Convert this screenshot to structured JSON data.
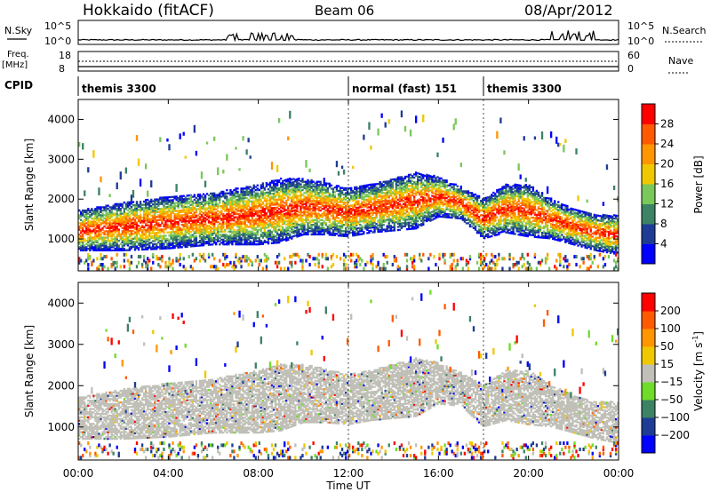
{
  "header": {
    "station": "Hokkaido (fitACF)",
    "beam": "Beam 06",
    "date": "08/Apr/2012"
  },
  "strip_labels": {
    "nsky": "N.Sky",
    "nsearch": "N.Search",
    "freq_top": "Freq.",
    "freq_unit": "[MHz]",
    "nave": "Nave",
    "cpid": "CPID",
    "nsky_ticks": [
      "10^5",
      "10^0"
    ],
    "nsearch_ticks": [
      "10^5",
      "10^0"
    ],
    "freq_ticks": [
      "18",
      "8"
    ],
    "nave_ticks": [
      "60",
      "0"
    ]
  },
  "cpid_segments": [
    {
      "start_hour": 0.0,
      "label": "themis 3300"
    },
    {
      "start_hour": 12.0,
      "label": "normal (fast) 151"
    },
    {
      "start_hour": 18.0,
      "label": "themis 3300"
    }
  ],
  "chart_data": [
    {
      "type": "heatmap",
      "title": "Power",
      "xlabel": "Time UT",
      "ylabel": "Slant Range [km]",
      "x_range_hours": [
        0,
        24
      ],
      "xticks": [
        "00:00",
        "04:00",
        "08:00",
        "12:00",
        "16:00",
        "20:00",
        "00:00"
      ],
      "ylim": [
        200,
        4500
      ],
      "yticks": [
        1000,
        2000,
        3000,
        4000
      ],
      "colorbar": {
        "label": "Power [dB]",
        "ticks": [
          4,
          8,
          12,
          16,
          20,
          24,
          28
        ],
        "colors": [
          "#0000ff",
          "#1e3c96",
          "#3c8264",
          "#7ac85a",
          "#f0c800",
          "#ff9600",
          "#ff5a00",
          "#ff0000"
        ]
      },
      "echo_bands": [
        {
          "name": "main",
          "x": [
            0,
            2,
            4,
            6,
            7,
            8,
            9,
            10,
            11,
            12,
            13,
            14,
            15,
            16,
            17,
            18,
            19,
            20,
            21,
            22,
            23,
            24
          ],
          "center_km": [
            1200,
            1300,
            1400,
            1500,
            1550,
            1600,
            1700,
            1800,
            1750,
            1650,
            1750,
            1850,
            1950,
            2050,
            1900,
            1500,
            1750,
            1700,
            1500,
            1300,
            1150,
            1100
          ],
          "width_km": [
            500,
            600,
            650,
            650,
            700,
            750,
            800,
            700,
            650,
            600,
            600,
            650,
            700,
            500,
            400,
            500,
            600,
            650,
            500,
            450,
            450,
            500
          ]
        }
      ]
    },
    {
      "type": "heatmap",
      "title": "Velocity",
      "xlabel": "Time UT",
      "ylabel": "Slant Range [km]",
      "x_range_hours": [
        0,
        24
      ],
      "xticks": [
        "00:00",
        "04:00",
        "08:00",
        "12:00",
        "16:00",
        "20:00",
        "00:00"
      ],
      "ylim": [
        200,
        4500
      ],
      "yticks": [
        1000,
        2000,
        3000,
        4000
      ],
      "colorbar": {
        "label": "Velocity [m s-1]",
        "label_text": "Velocity [m s",
        "label_sup": "-1",
        "label_end": "]",
        "ticks": [
          200,
          100,
          50,
          15,
          -15,
          -50,
          -100,
          -200
        ],
        "tick_labels": [
          "200",
          "100",
          "50",
          "15",
          "−15",
          "−50",
          "−100",
          "−200"
        ],
        "colors": [
          "#0000ff",
          "#1e3c96",
          "#3c8264",
          "#6edc28",
          "#c0c0b8",
          "#f0c800",
          "#ff9600",
          "#ff5a00",
          "#ff0000"
        ]
      },
      "ground_scatter_color": "#c0c0b8"
    }
  ]
}
